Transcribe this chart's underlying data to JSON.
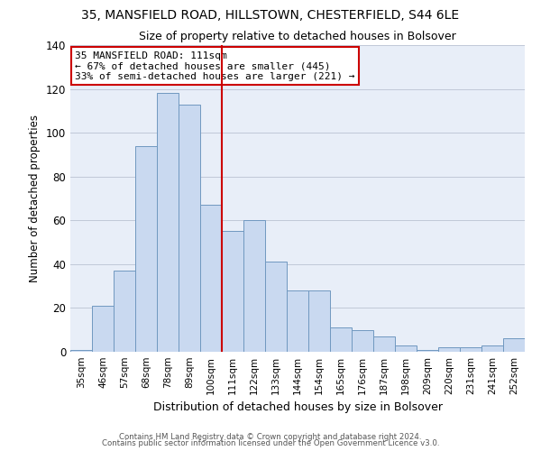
{
  "title1": "35, MANSFIELD ROAD, HILLSTOWN, CHESTERFIELD, S44 6LE",
  "title2": "Size of property relative to detached houses in Bolsover",
  "xlabel": "Distribution of detached houses by size in Bolsover",
  "ylabel": "Number of detached properties",
  "bar_labels": [
    "35sqm",
    "46sqm",
    "57sqm",
    "68sqm",
    "78sqm",
    "89sqm",
    "100sqm",
    "111sqm",
    "122sqm",
    "133sqm",
    "144sqm",
    "154sqm",
    "165sqm",
    "176sqm",
    "187sqm",
    "198sqm",
    "209sqm",
    "220sqm",
    "231sqm",
    "241sqm",
    "252sqm"
  ],
  "bar_values": [
    1,
    21,
    37,
    94,
    118,
    113,
    67,
    55,
    60,
    41,
    28,
    28,
    11,
    10,
    7,
    3,
    1,
    2,
    2,
    3,
    6
  ],
  "bar_color": "#c9d9f0",
  "bar_edge_color": "#7098c0",
  "vline_color": "#cc0000",
  "annotation_title": "35 MANSFIELD ROAD: 111sqm",
  "annotation_line1": "← 67% of detached houses are smaller (445)",
  "annotation_line2": "33% of semi-detached houses are larger (221) →",
  "annotation_box_color": "#ffffff",
  "annotation_box_edge": "#cc0000",
  "ylim": [
    0,
    140
  ],
  "yticks": [
    0,
    20,
    40,
    60,
    80,
    100,
    120,
    140
  ],
  "footer1": "Contains HM Land Registry data © Crown copyright and database right 2024.",
  "footer2": "Contains public sector information licensed under the Open Government Licence v3.0."
}
